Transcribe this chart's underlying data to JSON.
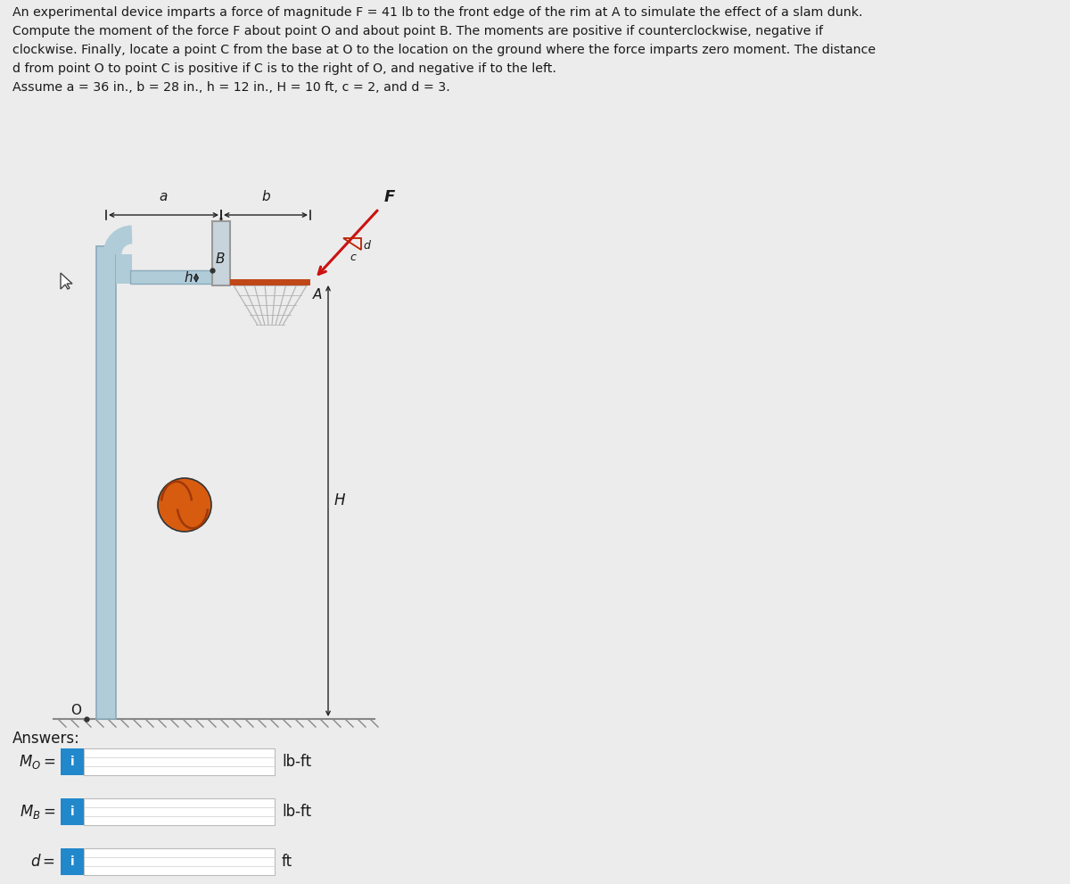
{
  "bg_color": "#ececec",
  "text_color": "#1a1a1a",
  "problem_lines": [
    "An experimental device imparts a force of magnitude F = 41 lb to the front edge of the rim at A to simulate the effect of a slam dunk.",
    "Compute the moment of the force F about point O and about point B. The moments are positive if counterclockwise, negative if",
    "clockwise. Finally, locate a point C from the base at O to the location on the ground where the force imparts zero moment. The distance",
    "d from point O to point C is positive if C is to the right of O, and negative if to the left.",
    "Assume a = 36 in., b = 28 in., h = 12 in., H = 10 ft, c = 2, and d = 3."
  ],
  "answers_label": "Answers:",
  "unit_mo": "lb-ft",
  "unit_mb": "lb-ft",
  "unit_d": "ft",
  "pole_color": "#b0ccd8",
  "pole_edge": "#8aaabb",
  "backboard_color": "#c8d4dc",
  "rim_color": "#c04818",
  "ball_color": "#d85c10",
  "ball_dark": "#a03808",
  "force_color": "#cc1111",
  "dim_color": "#222222",
  "blue_btn_color": "#2288cc",
  "ground_color": "#888888",
  "hatch_color": "#888888"
}
